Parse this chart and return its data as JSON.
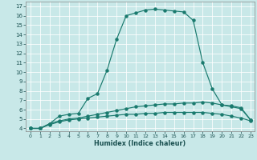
{
  "xlabel": "Humidex (Indice chaleur)",
  "bg_color": "#c8e8e8",
  "line_color": "#1a7a6e",
  "xlim_min": -0.5,
  "xlim_max": 23.4,
  "ylim_min": 3.7,
  "ylim_max": 17.5,
  "yticks": [
    4,
    5,
    6,
    7,
    8,
    9,
    10,
    11,
    12,
    13,
    14,
    15,
    16,
    17
  ],
  "xticks": [
    0,
    1,
    2,
    3,
    4,
    5,
    6,
    7,
    8,
    9,
    10,
    11,
    12,
    13,
    14,
    15,
    16,
    17,
    18,
    19,
    20,
    21,
    22,
    23
  ],
  "s1_x": [
    0,
    1,
    2,
    3,
    4,
    5,
    6,
    7,
    8,
    9,
    10,
    11,
    12,
    13,
    14,
    15,
    16,
    17,
    18,
    19,
    20,
    21,
    22,
    23
  ],
  "s1_y": [
    4.0,
    4.0,
    4.4,
    4.7,
    4.9,
    5.0,
    5.1,
    5.2,
    5.3,
    5.4,
    5.5,
    5.5,
    5.6,
    5.6,
    5.7,
    5.7,
    5.7,
    5.7,
    5.7,
    5.6,
    5.5,
    5.3,
    5.1,
    4.8
  ],
  "s2_x": [
    0,
    1,
    2,
    3,
    4,
    5,
    6,
    7,
    8,
    9,
    10,
    11,
    12,
    13,
    14,
    15,
    16,
    17,
    18,
    19,
    20,
    21,
    22,
    23
  ],
  "s2_y": [
    4.0,
    4.0,
    4.5,
    4.8,
    5.0,
    5.1,
    5.3,
    5.5,
    5.7,
    5.9,
    6.1,
    6.3,
    6.4,
    6.5,
    6.6,
    6.6,
    6.7,
    6.7,
    6.8,
    6.7,
    6.5,
    6.3,
    6.1,
    4.9
  ],
  "s3_x": [
    0,
    1,
    2,
    3,
    4,
    5,
    6,
    7,
    8,
    9,
    10,
    11,
    12,
    13,
    14,
    15,
    16,
    17,
    18,
    19,
    20,
    21,
    22,
    23
  ],
  "s3_y": [
    4.0,
    4.0,
    4.5,
    5.3,
    5.5,
    5.6,
    7.2,
    7.7,
    10.2,
    13.5,
    16.0,
    16.3,
    16.6,
    16.7,
    16.6,
    16.5,
    16.4,
    15.5,
    11.0,
    8.2,
    6.5,
    6.4,
    6.2,
    4.9
  ]
}
